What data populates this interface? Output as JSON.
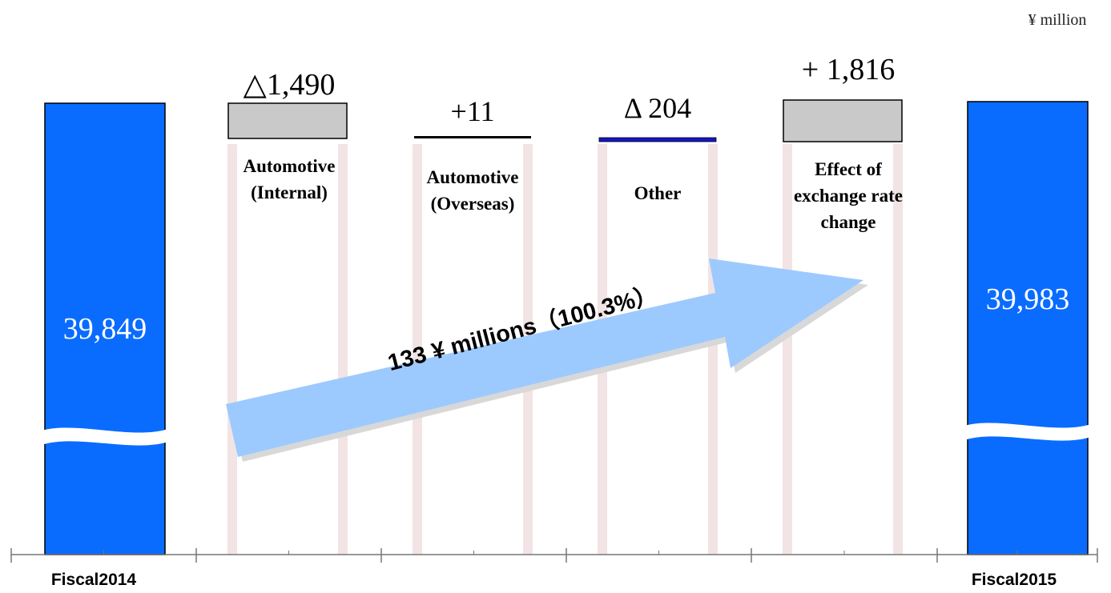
{
  "unit_label": "¥ million",
  "colors": {
    "total_bar": "#0a6cff",
    "total_bar_edge": "#000000",
    "change_box_fill": "#c9c9c9",
    "other_line": "#1414c8",
    "arrow_fill": "#9ccaff",
    "arrow_shadow": "#d8d8d8",
    "column_guides": "#f2e4e4",
    "axis": "#777777"
  },
  "chart_data": {
    "type": "bar",
    "subtype": "waterfall",
    "unit": "¥ million",
    "axis_broken": true,
    "categories": [
      "Fiscal2014",
      "Automotive (Internal)",
      "Automotive (Overseas)",
      "Other",
      "Effect of exchange rate change",
      "Fiscal2015"
    ],
    "values": [
      39849,
      -1490,
      11,
      -204,
      1816,
      39983
    ],
    "x_tick_labels": [
      "Fiscal2014",
      "Fiscal2015"
    ],
    "totals": [
      {
        "label": "Fiscal2014",
        "value": 39849,
        "value_label": "39,849"
      },
      {
        "label": "Fiscal2015",
        "value": 39983,
        "value_label": "39,983"
      }
    ],
    "changes": [
      {
        "label_lines": [
          "Automotive",
          "(Internal)"
        ],
        "value": -1490,
        "value_label": "△1,490",
        "style": "box"
      },
      {
        "label_lines": [
          "Automotive",
          "(Overseas)"
        ],
        "value": 11,
        "value_label": "+11",
        "style": "line"
      },
      {
        "label_lines": [
          "Other"
        ],
        "value": -204,
        "value_label": "Δ 204",
        "style": "line-blue"
      },
      {
        "label_lines": [
          "Effect of",
          "exchange rate",
          "change"
        ],
        "value": 1816,
        "value_label": "+ 1,816",
        "style": "box"
      }
    ],
    "annotation": {
      "text": "133 ¥ millions（100.3%）",
      "value": 133,
      "percent": 100.3
    }
  }
}
